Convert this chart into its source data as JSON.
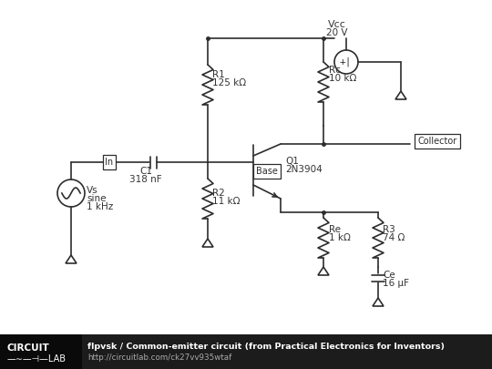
{
  "background_color": "#ffffff",
  "footer_bg": "#1a1a1a",
  "footer_text_color": "#ffffff",
  "line_color": "#2d2d2d",
  "label_color": "#333333",
  "title_line1": "flpvsk / Common-emitter circuit (from Practical Electronics for Inventors)",
  "title_line2": "http://circuitlab.com/ck27vv935wtaf",
  "components": {
    "Vcc_label": "Vcc",
    "Vcc_value": "20 V",
    "Rc_label": "Rc",
    "Rc_value": "10 kΩ",
    "R1_label": "R1",
    "R1_value": "125 kΩ",
    "R2_label": "R2",
    "R2_value": "11 kΩ",
    "Re_label": "Re",
    "Re_value": "1 kΩ",
    "R3_label": "R3",
    "R3_value": "74 Ω",
    "C1_label": "C1",
    "C1_value": "318 nF",
    "Ce_label": "Ce",
    "Ce_value": "16 μF",
    "Q1_label": "Q1",
    "Q1_value": "2N3904",
    "Vs_label": "Vs",
    "Vs_value1": "sine",
    "Vs_value2": "1 kHz",
    "In_label": "In",
    "Base_label": "Base",
    "Collector_label": "Collector"
  }
}
